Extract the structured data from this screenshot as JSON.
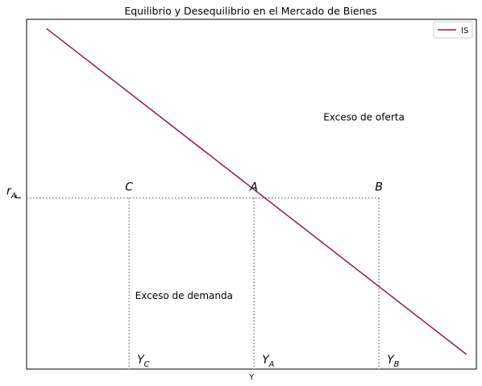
{
  "chart_data": {
    "type": "line",
    "title": "Equilibrio y Desequilibrio en el Mercado de Bienes",
    "xlabel": "Y",
    "ylabel": "",
    "xlim": [
      -5,
      175
    ],
    "ylim": [
      -20,
      170
    ],
    "grid": false,
    "legend_position": "top-right",
    "series": [
      {
        "name": "IS",
        "color": "#8B1A5A",
        "x": [
          3,
          171
        ],
        "y": [
          165,
          -12
        ]
      }
    ],
    "points": [
      {
        "label": "C",
        "x": 36,
        "y": 73
      },
      {
        "label": "A",
        "x": 86,
        "y": 73
      },
      {
        "label": "B",
        "x": 136,
        "y": 73
      }
    ],
    "y_ticks": [
      {
        "value": 73,
        "label": "r_A"
      }
    ],
    "x_annotations": [
      {
        "label": "Y_C",
        "x": 36
      },
      {
        "label": "Y_A",
        "x": 86
      },
      {
        "label": "Y_B",
        "x": 136
      }
    ],
    "annotations": [
      {
        "text": "Exceso de oferta",
        "x": 130,
        "y": 115
      },
      {
        "text": "Exceso de demanda",
        "x": 58,
        "y": 18
      }
    ]
  }
}
